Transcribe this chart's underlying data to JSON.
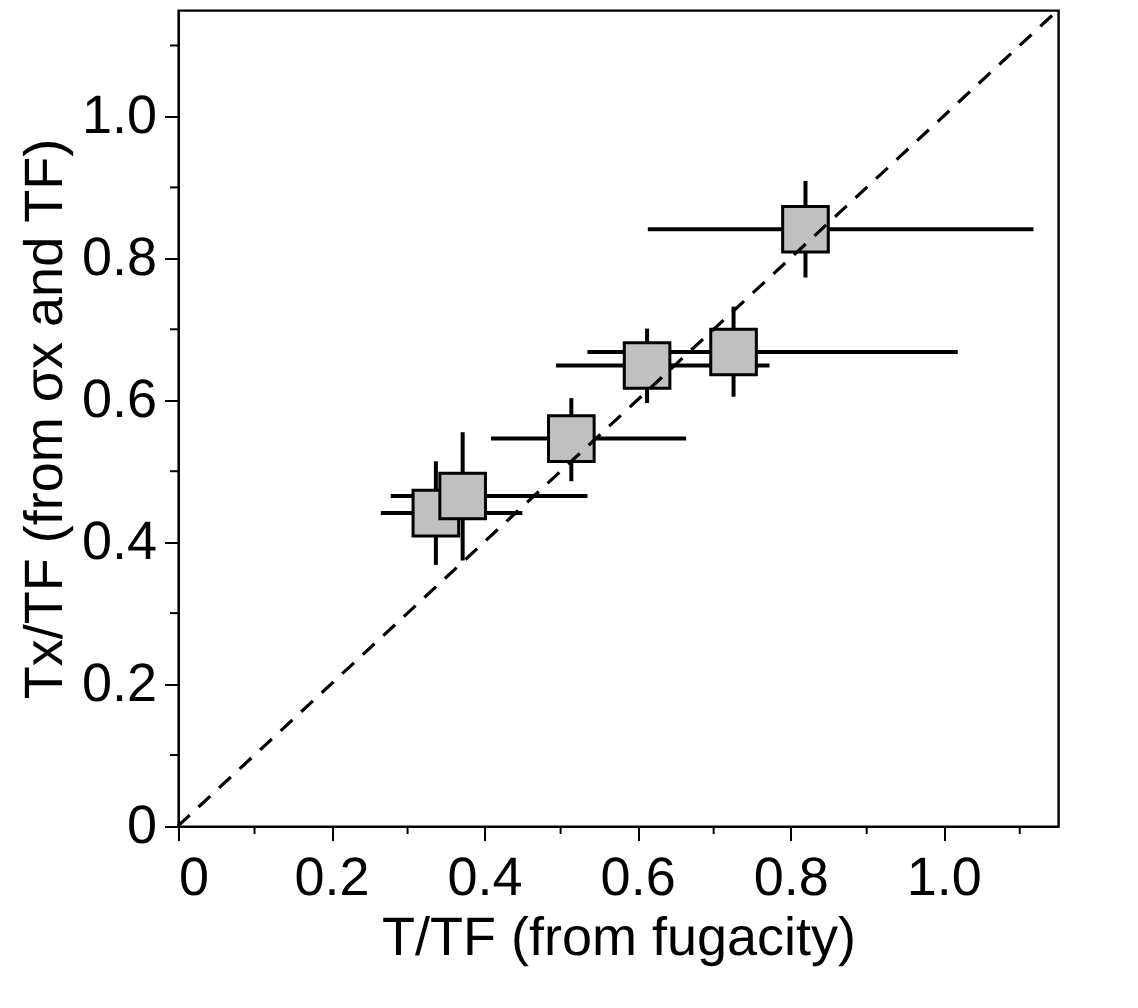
{
  "chart_data": {
    "type": "scatter",
    "xlabel": "T/TF (from fugacity)",
    "ylabel": "Tx/TF (from σx and TF)",
    "xlim": [
      0,
      1.15
    ],
    "ylim": [
      0,
      1.15
    ],
    "xticks": [
      0,
      {
        "value": 0.1,
        "label": null
      },
      0.2,
      {
        "value": 0.3,
        "label": null
      },
      0.4,
      {
        "value": 0.5,
        "label": null
      },
      0.6,
      {
        "value": 0.7,
        "label": null
      },
      0.8,
      {
        "value": 0.9,
        "label": null
      },
      {
        "value": 1.0,
        "label": "1.0"
      },
      {
        "value": 1.1,
        "label": null
      }
    ],
    "yticks": [
      0,
      {
        "value": 0.1,
        "label": null
      },
      0.2,
      {
        "value": 0.3,
        "label": null
      },
      0.4,
      {
        "value": 0.5,
        "label": null
      },
      0.6,
      {
        "value": 0.7,
        "label": null
      },
      0.8,
      {
        "value": 0.9,
        "label": null
      },
      {
        "value": 1.0,
        "label": "1.0"
      },
      {
        "value": 1.1,
        "label": null
      }
    ],
    "series": [
      {
        "color": "#c0c0c0",
        "marker": "square",
        "x": [
          0.337,
          0.372,
          0.514,
          0.613,
          0.726,
          0.82
        ],
        "values": [
          0.441,
          0.465,
          0.546,
          0.649,
          0.668,
          0.841
        ],
        "xerrors": [
          [
            0.265,
            0.45
          ],
          [
            0.278,
            0.535
          ],
          [
            0.409,
            0.664
          ],
          [
            0.494,
            0.773
          ],
          [
            0.535,
            1.019
          ],
          [
            0.614,
            1.118
          ]
        ],
        "errors": [
          [
            0.368,
            0.514
          ],
          [
            0.374,
            0.555
          ],
          [
            0.486,
            0.603
          ],
          [
            0.596,
            0.701
          ],
          [
            0.605,
            0.732
          ],
          [
            0.773,
            0.909
          ]
        ]
      },
      {
        "type": "line",
        "color": "#000000",
        "line_style": "dashed",
        "x": [
          0,
          1.15
        ],
        "values": [
          0,
          1.15
        ]
      }
    ]
  }
}
